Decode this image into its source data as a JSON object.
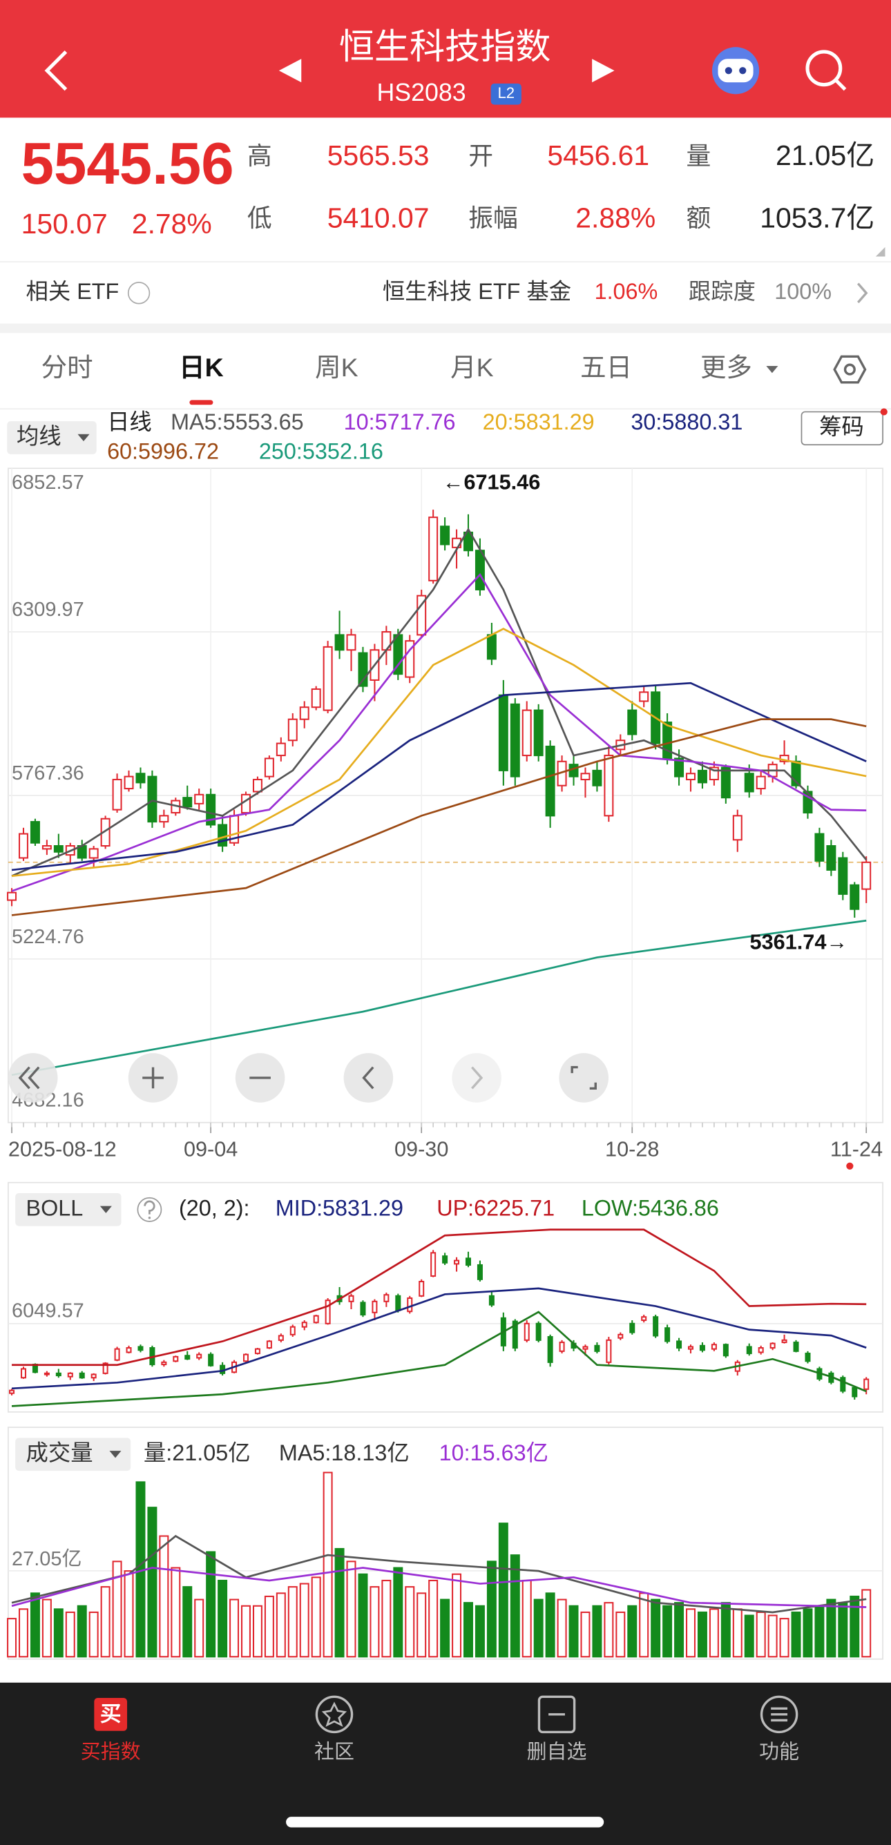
{
  "header": {
    "title": "恒生科技指数",
    "code": "HS2083",
    "badge": "L2"
  },
  "quote": {
    "price": "5545.56",
    "change": "150.07",
    "change_pct": "2.78%",
    "fields": [
      {
        "label": "高",
        "value": "5565.53"
      },
      {
        "label": "开",
        "value": "5456.61"
      },
      {
        "label": "量",
        "value": "21.05亿"
      },
      {
        "label": "低",
        "value": "5410.07"
      },
      {
        "label": "振幅",
        "value": "2.88%"
      },
      {
        "label": "额",
        "value": "1053.7亿"
      }
    ]
  },
  "etf": {
    "label": "相关 ETF",
    "name": "恒生科技 ETF 基金",
    "change": "1.06%",
    "tracking_label": "跟踪度",
    "tracking": "100%"
  },
  "tabs": [
    "分时",
    "日K",
    "周K",
    "月K",
    "五日",
    "更多"
  ],
  "active_tab": 1,
  "chart_data": [
    {
      "type": "candlestick",
      "indicator": "均线",
      "period": "日线",
      "button": "筹码",
      "up_color": "#e0262e",
      "down_color": "#138a1c",
      "xlim": [
        0,
        73
      ],
      "xticks": [
        {
          "value": 0,
          "label": "2025-08-12"
        },
        {
          "value": 17,
          "label": "09-04"
        },
        {
          "value": 35,
          "label": "09-30"
        },
        {
          "value": 53,
          "label": "10-28"
        },
        {
          "value": 73,
          "label": "11-24"
        }
      ],
      "ylim": [
        4682.16,
        6852.57
      ],
      "yticks": [
        6852.57,
        6309.97,
        5767.36,
        5224.76,
        4682.16
      ],
      "grid": true,
      "candles": [
        [
          5420,
          5460,
          5400,
          5445
        ],
        [
          5560,
          5660,
          5550,
          5640
        ],
        [
          5680,
          5690,
          5600,
          5610
        ],
        [
          5590,
          5620,
          5570,
          5600
        ],
        [
          5600,
          5640,
          5560,
          5580
        ],
        [
          5570,
          5610,
          5540,
          5600
        ],
        [
          5600,
          5620,
          5550,
          5560
        ],
        [
          5560,
          5600,
          5530,
          5590
        ],
        [
          5600,
          5700,
          5590,
          5690
        ],
        [
          5720,
          5840,
          5710,
          5820
        ],
        [
          5790,
          5850,
          5780,
          5830
        ],
        [
          5840,
          5860,
          5790,
          5810
        ],
        [
          5830,
          5850,
          5660,
          5680
        ],
        [
          5680,
          5720,
          5660,
          5700
        ],
        [
          5710,
          5760,
          5700,
          5750
        ],
        [
          5760,
          5800,
          5720,
          5730
        ],
        [
          5740,
          5790,
          5720,
          5770
        ],
        [
          5770,
          5790,
          5660,
          5670
        ],
        [
          5670,
          5700,
          5580,
          5600
        ],
        [
          5610,
          5720,
          5600,
          5700
        ],
        [
          5710,
          5780,
          5700,
          5770
        ],
        [
          5780,
          5830,
          5770,
          5820
        ],
        [
          5830,
          5900,
          5820,
          5890
        ],
        [
          5900,
          5960,
          5880,
          5940
        ],
        [
          5950,
          6040,
          5930,
          6020
        ],
        [
          6020,
          6080,
          5990,
          6060
        ],
        [
          6060,
          6130,
          6050,
          6120
        ],
        [
          6050,
          6280,
          6040,
          6260
        ],
        [
          6300,
          6380,
          6220,
          6250
        ],
        [
          6250,
          6320,
          6180,
          6300
        ],
        [
          6240,
          6260,
          6110,
          6130
        ],
        [
          6150,
          6270,
          6080,
          6250
        ],
        [
          6250,
          6330,
          6200,
          6310
        ],
        [
          6300,
          6320,
          6150,
          6170
        ],
        [
          6160,
          6300,
          6140,
          6280
        ],
        [
          6300,
          6450,
          6290,
          6430
        ],
        [
          6480,
          6715.46,
          6470,
          6690
        ],
        [
          6660,
          6690,
          6580,
          6600
        ],
        [
          6590,
          6650,
          6520,
          6620
        ],
        [
          6640,
          6700,
          6560,
          6580
        ],
        [
          6580,
          6620,
          6430,
          6450
        ],
        [
          6300,
          6340,
          6200,
          6220
        ],
        [
          6100,
          6150,
          5800,
          5850
        ],
        [
          6070,
          6090,
          5800,
          5830
        ],
        [
          5900,
          6080,
          5880,
          6050
        ],
        [
          6050,
          6070,
          5880,
          5900
        ],
        [
          5930,
          5950,
          5660,
          5700
        ],
        [
          5800,
          5900,
          5780,
          5880
        ],
        [
          5870,
          5900,
          5800,
          5830
        ],
        [
          5820,
          5860,
          5760,
          5840
        ],
        [
          5850,
          5880,
          5780,
          5800
        ],
        [
          5700,
          5930,
          5680,
          5900
        ],
        [
          5920,
          5970,
          5900,
          5950
        ],
        [
          6050,
          6080,
          5950,
          5970
        ],
        [
          6080,
          6130,
          6060,
          6110
        ],
        [
          6110,
          6130,
          5920,
          5940
        ],
        [
          6010,
          6040,
          5870,
          5890
        ],
        [
          5890,
          5920,
          5800,
          5830
        ],
        [
          5820,
          5860,
          5780,
          5840
        ],
        [
          5850,
          5880,
          5790,
          5810
        ],
        [
          5820,
          5880,
          5800,
          5860
        ],
        [
          5860,
          5870,
          5740,
          5760
        ],
        [
          5620,
          5720,
          5580,
          5700
        ],
        [
          5840,
          5870,
          5760,
          5780
        ],
        [
          5790,
          5850,
          5770,
          5830
        ],
        [
          5830,
          5880,
          5810,
          5870
        ],
        [
          5880,
          5950,
          5870,
          5900
        ],
        [
          5880,
          5900,
          5790,
          5800
        ],
        [
          5780,
          5800,
          5690,
          5710
        ],
        [
          5640,
          5660,
          5530,
          5550
        ],
        [
          5600,
          5620,
          5500,
          5520
        ],
        [
          5560,
          5580,
          5420,
          5440
        ],
        [
          5470,
          5480,
          5361.74,
          5390
        ],
        [
          5456.61,
          5565.53,
          5410.07,
          5545.56
        ]
      ],
      "series": [
        {
          "label": "MA5:5553.65",
          "color": "#555555",
          "x": [
            0,
            6,
            12,
            18,
            24,
            30,
            36,
            39,
            42,
            48,
            54,
            60,
            66,
            70,
            73
          ],
          "values": [
            5500,
            5600,
            5750,
            5700,
            5850,
            6150,
            6450,
            6650,
            6450,
            5900,
            5950,
            5850,
            5850,
            5700,
            5553.65
          ]
        },
        {
          "label": "10:5717.76",
          "color": "#9a2fd4",
          "x": [
            0,
            8,
            16,
            22,
            28,
            34,
            40,
            46,
            52,
            58,
            64,
            70,
            73
          ],
          "values": [
            5450,
            5560,
            5680,
            5720,
            5950,
            6250,
            6500,
            6100,
            5900,
            5880,
            5850,
            5720,
            5717.76
          ]
        },
        {
          "label": "20:5831.29",
          "color": "#e6ad1e",
          "x": [
            0,
            10,
            20,
            28,
            36,
            42,
            48,
            56,
            64,
            73
          ],
          "values": [
            5500,
            5540,
            5650,
            5820,
            6200,
            6320,
            6200,
            6000,
            5900,
            5831.29
          ]
        },
        {
          "label": "30:5880.31",
          "color": "#1a237e",
          "x": [
            0,
            14,
            24,
            34,
            42,
            50,
            58,
            66,
            73
          ],
          "values": [
            5520,
            5580,
            5670,
            5950,
            6100,
            6120,
            6140,
            6000,
            5880.31
          ]
        },
        {
          "label": "60:5996.72",
          "color": "#9c4a14",
          "x": [
            0,
            20,
            35,
            50,
            64,
            70,
            73
          ],
          "values": [
            5370,
            5460,
            5700,
            5880,
            6020,
            6020,
            5996.72
          ]
        },
        {
          "label": "250:5352.16",
          "color": "#1a9a7a",
          "x": [
            0,
            30,
            50,
            73
          ],
          "values": [
            4840,
            5050,
            5230,
            5352.16
          ]
        }
      ],
      "annotations": [
        {
          "text": "←6715.46",
          "x": 36,
          "value": 6715.46
        },
        {
          "text": "5361.74→",
          "x": 72,
          "value": 5361.74
        }
      ]
    },
    {
      "type": "candlestick",
      "indicator": "BOLL",
      "params": "(20, 2):",
      "ylim": [
        5250,
        6900
      ],
      "yticks": [
        6049.57
      ],
      "series": [
        {
          "label": "MID:5831.29",
          "color": "#1a237e",
          "x": [
            0,
            9,
            18,
            27,
            37,
            45,
            55,
            63,
            70,
            73
          ],
          "values": [
            5463,
            5516,
            5622,
            5942,
            6315,
            6368,
            6208,
            5995,
            5942,
            5831.29
          ]
        },
        {
          "label": "UP:6225.71",
          "color": "#c0161e",
          "x": [
            0,
            9,
            18,
            27,
            37,
            46,
            54,
            60,
            63,
            70,
            73
          ],
          "values": [
            5676,
            5676,
            5889,
            6208,
            6847,
            6900,
            6900,
            6527,
            6208,
            6229,
            6225.71
          ]
        },
        {
          "label": "LOW:5436.86",
          "color": "#1d7a1d",
          "x": [
            0,
            18,
            27,
            37,
            45,
            50,
            60,
            65,
            70,
            73
          ],
          "values": [
            5303,
            5410,
            5516,
            5676,
            6155,
            5676,
            5622,
            5729,
            5569,
            5436.86
          ]
        }
      ]
    },
    {
      "type": "bar",
      "indicator": "成交量",
      "label": "量:21.05亿",
      "ylim": [
        0,
        71.5
      ],
      "yticks": [
        {
          "value": 27.05,
          "label": "27.05亿"
        }
      ],
      "values": [
        12,
        15,
        20,
        18,
        15,
        14,
        16,
        14,
        22,
        30,
        27,
        55,
        47,
        38,
        28,
        22,
        18,
        33,
        24,
        18,
        16,
        16,
        19,
        20,
        22,
        23,
        25,
        58,
        34,
        30,
        26,
        22,
        24,
        28,
        22,
        20,
        24,
        18,
        26,
        17,
        16,
        30,
        42,
        32,
        24,
        18,
        20,
        18,
        16,
        14,
        16,
        17,
        14,
        16,
        20,
        18,
        16,
        17,
        15,
        14,
        15,
        17,
        15,
        13,
        14,
        13,
        12,
        14,
        15,
        16,
        18,
        17,
        19,
        21.05
      ],
      "series": [
        {
          "label": "MA5:18.13亿",
          "color": "#555555",
          "x": [
            0,
            10,
            14,
            20,
            27,
            33,
            41,
            45,
            55,
            65,
            73
          ],
          "values": [
            17,
            26,
            38,
            25,
            32,
            30,
            28,
            27,
            17,
            14,
            18.13
          ]
        },
        {
          "label": "10:15.63亿",
          "color": "#9a2fd4",
          "x": [
            0,
            12,
            22,
            30,
            40,
            48,
            58,
            73
          ],
          "values": [
            16,
            28,
            24,
            28,
            23,
            25,
            17,
            15.63
          ]
        }
      ]
    }
  ],
  "nav": [
    {
      "label": "买指数",
      "icon": "买"
    },
    {
      "label": "社区"
    },
    {
      "label": "删自选"
    },
    {
      "label": "功能"
    }
  ],
  "active_nav": 0
}
